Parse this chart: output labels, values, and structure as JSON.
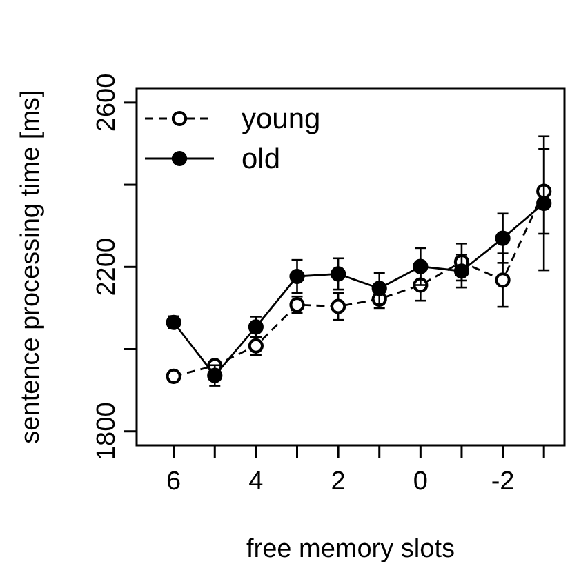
{
  "chart_data": {
    "type": "line",
    "xlabel": "free memory slots",
    "ylabel": "sentence processing time [ms]",
    "x": [
      6,
      5,
      4,
      3,
      2,
      1,
      0,
      -1,
      -2,
      -3
    ],
    "xlim": [
      6.9,
      -3.5
    ],
    "xticks": [
      6,
      {
        "value": 5,
        "label": null
      },
      4,
      {
        "value": 3,
        "label": null
      },
      2,
      {
        "value": 1,
        "label": null
      },
      0,
      {
        "value": -1,
        "label": null
      },
      -2,
      {
        "value": -3,
        "label": null
      }
    ],
    "ylim": [
      1766,
      2635
    ],
    "yticks": [
      1800,
      {
        "value": 2000,
        "label": null
      },
      2200,
      {
        "value": 2400,
        "label": null
      },
      2600
    ],
    "series": [
      {
        "name": "young",
        "color": "#000000",
        "line_style": "dashed",
        "values": [
          1934,
          1960,
          2008,
          2108,
          2104,
          2122,
          2156,
          2212,
          2168,
          2384
        ],
        "errors": [
          10,
          10,
          22,
          20,
          33,
          22,
          38,
          45,
          65,
          103
        ]
      },
      {
        "name": "old",
        "color": "#000000",
        "line_style": "solid",
        "values": [
          2065,
          1936,
          2054,
          2177,
          2183,
          2148,
          2201,
          2190,
          2270,
          2355
        ],
        "errors": [
          15,
          25,
          25,
          40,
          38,
          37,
          45,
          40,
          60,
          163
        ]
      }
    ],
    "marker": "circle",
    "legend": "top left",
    "grid": false
  }
}
